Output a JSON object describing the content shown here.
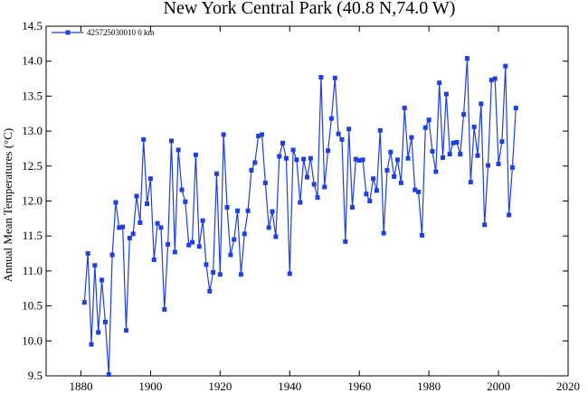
{
  "chart_data": {
    "type": "line",
    "title": "New York Central Park (40.8 N,74.0 W)",
    "xlabel": "",
    "ylabel": "Annual Mean Temperatures (°C)",
    "xlim": [
      1870,
      2020
    ],
    "ylim": [
      9.5,
      14.5
    ],
    "x_ticks": [
      1880,
      1900,
      1920,
      1940,
      1960,
      1980,
      2000,
      2020
    ],
    "y_ticks": [
      9.5,
      10.0,
      10.5,
      11.0,
      11.5,
      12.0,
      12.5,
      13.0,
      13.5,
      14.0,
      14.5
    ],
    "x_tick_labels": [
      "1880",
      "1900",
      "1920",
      "1940",
      "1960",
      "1980",
      "2000",
      "2020"
    ],
    "y_tick_labels": [
      "9.5",
      "10.0",
      "10.5",
      "11.0",
      "11.5",
      "12.0",
      "12.5",
      "13.0",
      "13.5",
      "14.0",
      "14.5"
    ],
    "grid": false,
    "legend_position": "top-left",
    "series": [
      {
        "name": "425725030010  0 km",
        "color": "#1f3fe0",
        "marker": "square",
        "x": [
          1881,
          1882,
          1883,
          1884,
          1885,
          1886,
          1887,
          1888,
          1889,
          1890,
          1891,
          1892,
          1893,
          1894,
          1895,
          1896,
          1897,
          1898,
          1899,
          1900,
          1901,
          1902,
          1903,
          1904,
          1905,
          1906,
          1907,
          1908,
          1909,
          1910,
          1911,
          1912,
          1913,
          1914,
          1915,
          1916,
          1917,
          1918,
          1919,
          1920,
          1921,
          1922,
          1923,
          1924,
          1925,
          1926,
          1927,
          1928,
          1929,
          1930,
          1931,
          1932,
          1933,
          1934,
          1935,
          1936,
          1937,
          1938,
          1939,
          1940,
          1941,
          1942,
          1943,
          1944,
          1945,
          1946,
          1947,
          1948,
          1949,
          1950,
          1951,
          1952,
          1953,
          1954,
          1955,
          1956,
          1957,
          1958,
          1959,
          1960,
          1961,
          1962,
          1963,
          1964,
          1965,
          1966,
          1967,
          1968,
          1969,
          1970,
          1971,
          1972,
          1973,
          1974,
          1975,
          1976,
          1977,
          1978,
          1979,
          1980,
          1981,
          1982,
          1983,
          1984,
          1985,
          1986,
          1987,
          1988,
          1989,
          1990,
          1991,
          1992,
          1993,
          1994,
          1995,
          1996,
          1997,
          1998,
          1999,
          2000,
          2001,
          2002,
          2003,
          2004,
          2005
        ],
        "y": [
          10.55,
          11.25,
          9.95,
          11.08,
          10.12,
          10.87,
          10.27,
          9.52,
          11.23,
          11.98,
          11.62,
          11.63,
          10.15,
          11.47,
          11.53,
          12.07,
          11.69,
          12.88,
          11.96,
          12.32,
          11.16,
          11.68,
          11.62,
          10.45,
          11.38,
          12.86,
          11.27,
          12.73,
          12.16,
          11.99,
          11.37,
          11.41,
          12.66,
          11.35,
          11.72,
          11.09,
          10.71,
          10.98,
          12.39,
          10.95,
          12.95,
          11.91,
          11.23,
          11.45,
          11.86,
          10.95,
          11.53,
          11.86,
          12.44,
          12.55,
          12.93,
          12.95,
          12.26,
          11.62,
          11.85,
          11.49,
          12.64,
          12.83,
          12.61,
          10.96,
          12.73,
          12.59,
          11.98,
          12.6,
          12.34,
          12.61,
          12.24,
          12.05,
          13.77,
          12.2,
          12.72,
          13.18,
          13.76,
          12.96,
          12.88,
          11.42,
          13.03,
          11.91,
          12.6,
          12.58,
          12.59,
          12.1,
          12.0,
          12.32,
          12.15,
          13.01,
          11.54,
          12.44,
          12.7,
          12.35,
          12.59,
          12.26,
          13.33,
          12.61,
          12.91,
          12.16,
          12.13,
          11.51,
          13.05,
          13.16,
          12.71,
          12.42,
          13.69,
          12.62,
          13.53,
          12.67,
          12.83,
          12.84,
          12.67,
          13.24,
          14.04,
          12.27,
          13.06,
          12.65,
          13.39,
          11.66,
          12.51,
          13.73,
          13.75,
          12.53,
          12.85,
          13.93,
          11.8,
          12.48,
          13.33
        ]
      }
    ]
  }
}
